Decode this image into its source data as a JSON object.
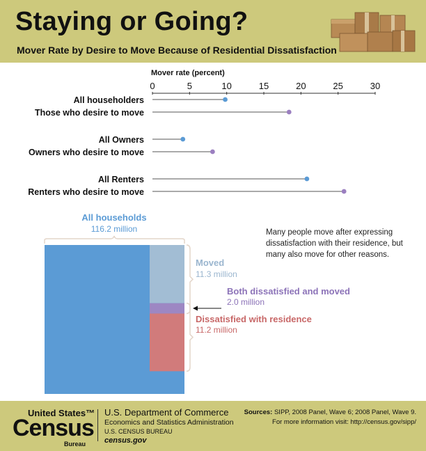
{
  "header": {
    "title": "Staying or Going?",
    "subtitle": "Mover Rate by Desire to Move Because of Residential Dissatisfaction"
  },
  "chart_data": [
    {
      "type": "lollipop",
      "xlabel": "Mover rate (percent)",
      "xlim": [
        0,
        30
      ],
      "ticks": [
        0,
        5,
        10,
        15,
        20,
        25,
        30
      ],
      "categories": [
        "All householders",
        "Those who desire to move",
        "All Owners",
        "Owners who desire to move",
        "All Renters",
        "Renters who desire to move"
      ],
      "values": [
        9.8,
        18.4,
        4.1,
        8.1,
        20.8,
        25.8
      ],
      "colors": [
        "#5b9bd5",
        "#9b7fc0",
        "#5b9bd5",
        "#9b7fc0",
        "#5b9bd5",
        "#9b7fc0"
      ]
    },
    {
      "type": "area",
      "total": {
        "label": "All households",
        "value_text": "116.2 million",
        "value": 116.2
      },
      "segments": [
        {
          "label": "Moved",
          "value_text": "11.3 million",
          "value": 11.3,
          "color": "#a2bdd4"
        },
        {
          "label": "Both dissatisfied and moved",
          "value_text": "2.0 million",
          "value": 2.0,
          "color": "#9d87c3"
        },
        {
          "label": "Dissatisfied with residence",
          "value_text": "11.2 million",
          "value": 11.2,
          "color": "#d17b7b"
        }
      ],
      "colors": {
        "total": "#5b9bd5",
        "moved_text": "#9bb6cf",
        "both_text": "#8c73b8",
        "dissatisfied_text": "#c86868"
      }
    }
  ],
  "note": "Many people move after expressing dissatisfaction with their residence, but many also move for other reasons.",
  "footer": {
    "logo_line1": "United States™",
    "logo_line2": "Census",
    "logo_line3": "Bureau",
    "dept1": "U.S. Department of Commerce",
    "dept2": "Economics and Statistics Administration",
    "dept3": "U.S. CENSUS BUREAU",
    "dept4": "census.gov",
    "sources_label": "Sources:",
    "sources_text": "SIPP, 2008 Panel, Wave 6; 2008 Panel, Wave 9.",
    "more_info": "For more information visit: http://census.gov/sipp/"
  }
}
